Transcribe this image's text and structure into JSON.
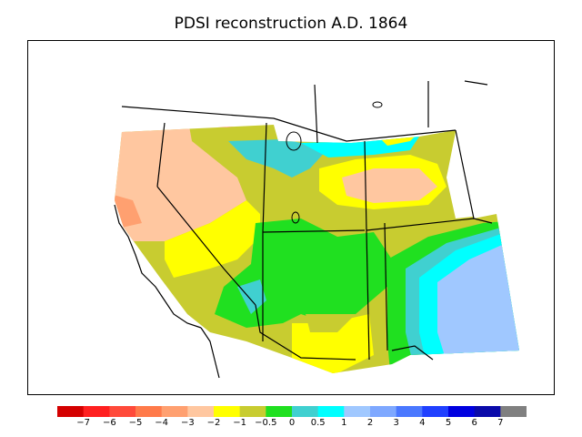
{
  "title": "PDSI reconstruction A.D. 1864",
  "legend": {
    "colors": [
      "#d40000",
      "#ff2020",
      "#ff4a3a",
      "#ff7a4a",
      "#ffa070",
      "#ffc7a0",
      "#ffff00",
      "#c8cc30",
      "#20e020",
      "#40d0d0",
      "#00ffff",
      "#a0c8ff",
      "#7ea8ff",
      "#4a78ff",
      "#2040ff",
      "#0000e0",
      "#0a0aaa",
      "#808080"
    ],
    "labels": [
      "−7",
      "−6",
      "−5",
      "−4",
      "−3",
      "−2",
      "−1",
      "−0.5",
      "0",
      "0.5",
      "1",
      "2",
      "3",
      "4",
      "5",
      "6",
      "7"
    ]
  }
}
